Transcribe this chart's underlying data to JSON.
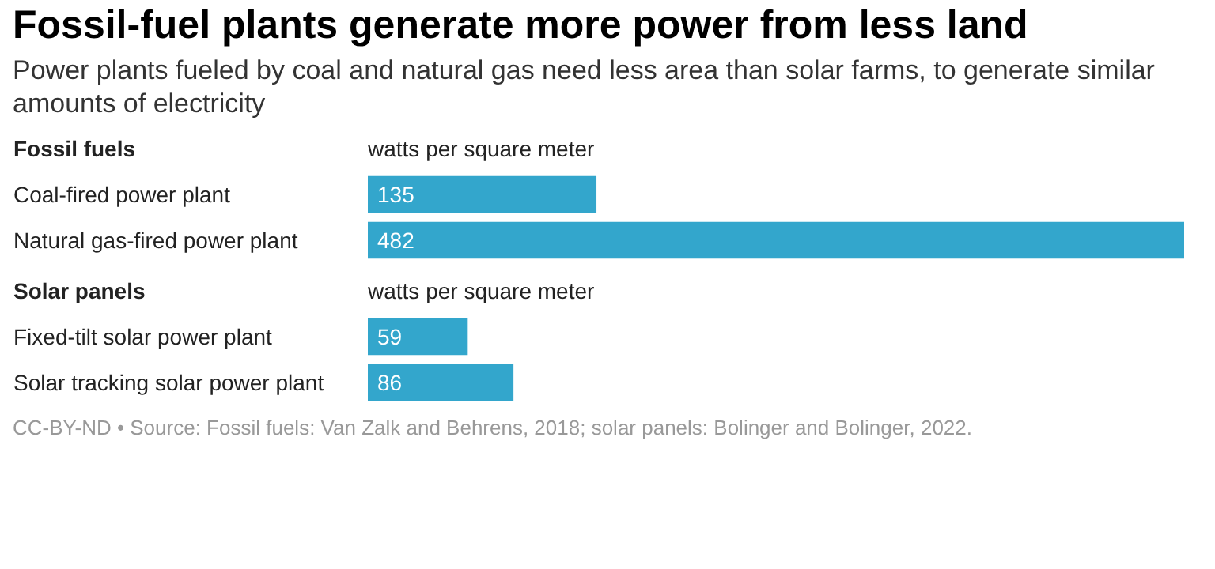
{
  "chart_data": [
    {
      "type": "bar",
      "orientation": "horizontal",
      "title": "Fossil-fuel plants generate more power from less land",
      "subtitle": "Power plants fueled by coal and natural gas need less area than solar farms, to generate similar amounts of electricity",
      "ylabel": "Fossil fuels",
      "xlabel": "watts per square meter",
      "categories": [
        "Coal-fired power plant",
        "Natural gas-fired power plant"
      ],
      "values": [
        135,
        482
      ],
      "colors": [
        "#33a6cc",
        "#33a6cc"
      ],
      "data_labels": true
    },
    {
      "type": "bar",
      "orientation": "horizontal",
      "ylabel": "Solar panels",
      "xlabel": "watts per square meter",
      "categories": [
        "Fixed-tilt solar power plant",
        "Solar tracking solar power plant"
      ],
      "values": [
        59,
        86
      ],
      "colors": [
        "#33a6cc",
        "#33a6cc"
      ],
      "data_labels": true,
      "annotations": [
        "CC-BY-ND • Source: Fossil fuels: Van Zalk and Behrens, 2018; solar panels: Bolinger and Bolinger, 2022."
      ]
    }
  ]
}
